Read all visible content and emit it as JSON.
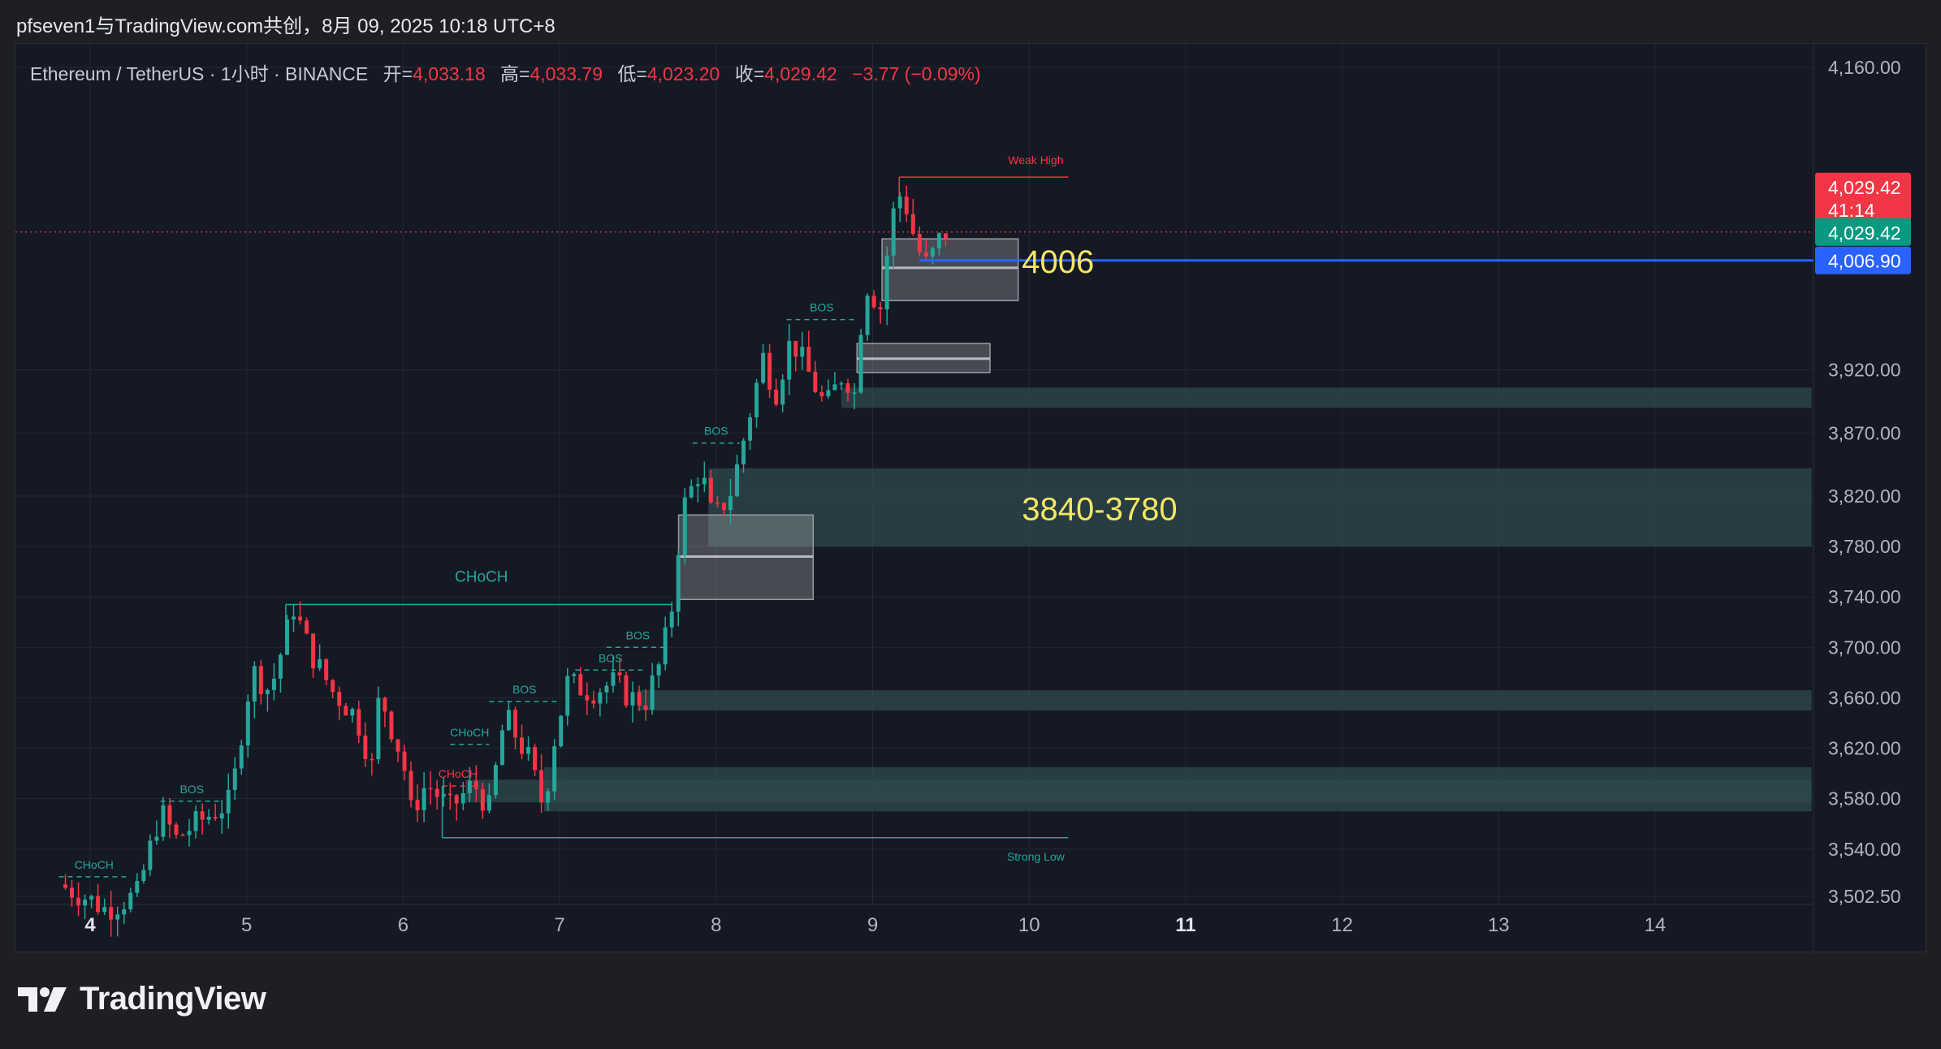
{
  "caption": "pfseven1与TradingView.com共创，8月 09, 2025 10:18 UTC+8",
  "brand": {
    "name": "TradingView",
    "logo_icon": "tradingview-logo-icon"
  },
  "legend": {
    "symbol": "Ethereum / TetherUS · 1小时 · BINANCE",
    "open_label": "开=",
    "open": "4,033.18",
    "high_label": "高=",
    "high": "4,033.79",
    "low_label": "低=",
    "low": "4,023.20",
    "close_label": "收=",
    "close": "4,029.42",
    "change": "−3.77 (−0.09%)"
  },
  "colors": {
    "background": "#151924",
    "up": "#26a69a",
    "down": "#f23645",
    "zone": "#2f4a4c",
    "box": "#c8c8cc",
    "hline": "#2962ff",
    "price_tag_red": "#f23645",
    "price_tag_green": "#089981",
    "price_tag_blue": "#2962ff",
    "annotation_yellow": "#f5e663"
  },
  "chart_data": {
    "type": "candlestick",
    "symbol": "ETHUSDT",
    "interval": "1h",
    "ylim": [
      3502.5,
      4160
    ],
    "y_ticks": [
      "4,160.00",
      "3,920.00",
      "3,870.00",
      "3,820.00",
      "3,780.00",
      "3,740.00",
      "3,700.00",
      "3,660.00",
      "3,620.00",
      "3,580.00",
      "3,540.00",
      "3,502.50"
    ],
    "y_tick_values": [
      4160,
      3920,
      3870,
      3820,
      3780,
      3740,
      3700,
      3660,
      3620,
      3580,
      3540,
      3502.5
    ],
    "x_ticks": [
      "4",
      "5",
      "6",
      "7",
      "8",
      "9",
      "10",
      "11",
      "12",
      "13",
      "14"
    ],
    "x_tick_days": [
      4,
      5,
      6,
      7,
      8,
      9,
      10,
      11,
      12,
      13,
      14
    ],
    "xlim_days": [
      3.8,
      15.0
    ],
    "price_tags": [
      {
        "value": 4029.42,
        "text": "4,029.42",
        "sub": "41:14",
        "kind": "last"
      },
      {
        "value": 4029.42,
        "text": "4,029.42",
        "kind": "close"
      },
      {
        "value": 4006.9,
        "text": "4,006.90",
        "kind": "line"
      }
    ],
    "annotations": [
      {
        "text": "4006",
        "day": 9.85,
        "price": 4006
      },
      {
        "text": "3840-3780",
        "day": 9.85,
        "price": 3810
      }
    ],
    "zones": [
      {
        "d1": 8.8,
        "d2": 15.0,
        "low": 3890,
        "high": 3906
      },
      {
        "d1": 7.95,
        "d2": 15.0,
        "low": 3780,
        "high": 3842
      },
      {
        "d1": 7.5,
        "d2": 15.0,
        "low": 3650,
        "high": 3666
      },
      {
        "d1": 6.9,
        "d2": 15.0,
        "low": 3570,
        "high": 3605
      },
      {
        "d1": 6.4,
        "d2": 15.0,
        "low": 3577,
        "high": 3595
      }
    ],
    "boxes": [
      {
        "d1": 7.76,
        "d2": 8.62,
        "low": 3738,
        "high": 3805,
        "mid": 3772
      },
      {
        "d1": 9.06,
        "d2": 9.93,
        "low": 3975,
        "high": 4024,
        "mid": 4001
      },
      {
        "d1": 8.9,
        "d2": 9.75,
        "low": 3918,
        "high": 3941,
        "mid": 3929
      }
    ],
    "levels": [
      {
        "label": "Weak High",
        "price": 4073,
        "d1": 9.17,
        "d2": 10.25,
        "color": "red"
      },
      {
        "label": "Strong Low",
        "price": 3549,
        "d1": 6.25,
        "d2": 10.25,
        "color": "green"
      },
      {
        "label": "CHoCH",
        "price": 3734,
        "d1": 5.25,
        "d2": 7.72,
        "color": "green",
        "solid": true,
        "label_day": 6.5,
        "label_price": 3752
      }
    ],
    "structure": [
      {
        "label": "CHoCH",
        "price": 3518,
        "d1": 3.8,
        "d2": 4.25,
        "color": "green"
      },
      {
        "label": "BOS",
        "price": 3578,
        "d1": 4.45,
        "d2": 4.85,
        "color": "green"
      },
      {
        "label": "CHoCH",
        "price": 3590,
        "d1": 6.25,
        "d2": 6.45,
        "color": "red"
      },
      {
        "label": "CHoCH",
        "price": 3623,
        "d1": 6.3,
        "d2": 6.55,
        "color": "green"
      },
      {
        "label": "BOS",
        "price": 3657,
        "d1": 6.55,
        "d2": 7.0,
        "color": "green"
      },
      {
        "label": "BOS",
        "price": 3682,
        "d1": 7.1,
        "d2": 7.55,
        "color": "green"
      },
      {
        "label": "BOS",
        "price": 3700,
        "d1": 7.3,
        "d2": 7.7,
        "color": "green"
      },
      {
        "label": "BOS",
        "price": 3862,
        "d1": 7.85,
        "d2": 8.15,
        "color": "green"
      },
      {
        "label": "BOS",
        "price": 3960,
        "d1": 8.45,
        "d2": 8.9,
        "color": "green"
      }
    ],
    "anchors": [
      [
        3.8,
        3512
      ],
      [
        4.0,
        3500
      ],
      [
        4.1,
        3492
      ],
      [
        4.3,
        3504
      ],
      [
        4.45,
        3570
      ],
      [
        4.55,
        3548
      ],
      [
        4.65,
        3558
      ],
      [
        4.8,
        3570
      ],
      [
        4.9,
        3578
      ],
      [
        5.0,
        3660
      ],
      [
        5.05,
        3680
      ],
      [
        5.15,
        3665
      ],
      [
        5.3,
        3732
      ],
      [
        5.4,
        3698
      ],
      [
        5.55,
        3665
      ],
      [
        5.7,
        3645
      ],
      [
        5.8,
        3606
      ],
      [
        5.85,
        3665
      ],
      [
        5.92,
        3638
      ],
      [
        6.0,
        3610
      ],
      [
        6.05,
        3570
      ],
      [
        6.15,
        3592
      ],
      [
        6.3,
        3572
      ],
      [
        6.45,
        3592
      ],
      [
        6.55,
        3572
      ],
      [
        6.65,
        3646
      ],
      [
        6.8,
        3612
      ],
      [
        6.9,
        3572
      ],
      [
        6.95,
        3618
      ],
      [
        7.05,
        3672
      ],
      [
        7.2,
        3665
      ],
      [
        7.35,
        3672
      ],
      [
        7.45,
        3660
      ],
      [
        7.55,
        3658
      ],
      [
        7.65,
        3690
      ],
      [
        7.72,
        3734
      ],
      [
        7.78,
        3808
      ],
      [
        7.9,
        3842
      ],
      [
        7.98,
        3800
      ],
      [
        8.1,
        3825
      ],
      [
        8.2,
        3878
      ],
      [
        8.3,
        3930
      ],
      [
        8.38,
        3902
      ],
      [
        8.48,
        3945
      ],
      [
        8.6,
        3915
      ],
      [
        8.7,
        3890
      ],
      [
        8.82,
        3920
      ],
      [
        8.88,
        3897
      ],
      [
        8.95,
        3990
      ],
      [
        9.05,
        3970
      ],
      [
        9.12,
        4040
      ],
      [
        9.18,
        4060
      ],
      [
        9.22,
        4048
      ],
      [
        9.28,
        4018
      ],
      [
        9.35,
        4002
      ],
      [
        9.42,
        4022
      ],
      [
        9.47,
        4029.42
      ]
    ]
  }
}
